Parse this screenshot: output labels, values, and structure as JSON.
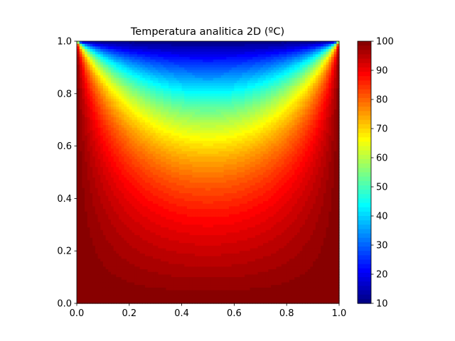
{
  "chart_data": {
    "type": "heatmap",
    "title": "Temperatura analitica 2D (ºC)",
    "xlabel": "",
    "ylabel": "",
    "xlim": [
      0.0,
      1.0
    ],
    "ylim": [
      0.0,
      1.0
    ],
    "x_ticks": [
      0.0,
      0.2,
      0.4,
      0.6,
      0.8,
      1.0
    ],
    "x_tick_labels": [
      "0.0",
      "0.2",
      "0.4",
      "0.6",
      "0.8",
      "1.0"
    ],
    "y_ticks": [
      0.0,
      0.2,
      0.4,
      0.6,
      0.8,
      1.0
    ],
    "y_tick_labels": [
      "0.0",
      "0.2",
      "0.4",
      "0.6",
      "0.8",
      "1.0"
    ],
    "colormap": "jet",
    "grid": false,
    "colorbar": {
      "range": [
        10,
        100
      ],
      "ticks": [
        10,
        20,
        30,
        40,
        50,
        60,
        70,
        80,
        90,
        100
      ],
      "tick_labels": [
        "10",
        "20",
        "30",
        "40",
        "50",
        "60",
        "70",
        "80",
        "90",
        "100"
      ]
    },
    "boundary_conditions": {
      "top_edge": 10,
      "bottom_edge": 100,
      "left_edge": 100,
      "right_edge": 100
    },
    "sample_values": [
      {
        "x": 0.5,
        "y": 0.95,
        "value": 16
      },
      {
        "x": 0.5,
        "y": 0.9,
        "value": 28
      },
      {
        "x": 0.5,
        "y": 0.8,
        "value": 48
      },
      {
        "x": 0.5,
        "y": 0.7,
        "value": 63
      },
      {
        "x": 0.5,
        "y": 0.6,
        "value": 73
      },
      {
        "x": 0.5,
        "y": 0.5,
        "value": 80
      },
      {
        "x": 0.5,
        "y": 0.4,
        "value": 85
      },
      {
        "x": 0.5,
        "y": 0.3,
        "value": 89
      },
      {
        "x": 0.5,
        "y": 0.2,
        "value": 93
      },
      {
        "x": 0.5,
        "y": 0.1,
        "value": 96
      }
    ]
  }
}
